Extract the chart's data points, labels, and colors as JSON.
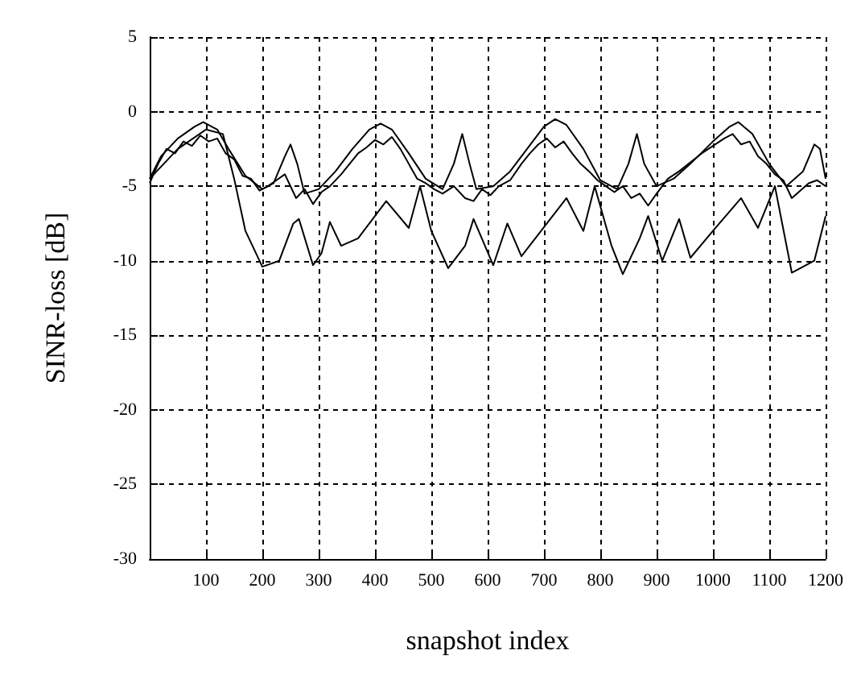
{
  "chart_data": {
    "type": "line",
    "xlabel": "snapshot index",
    "ylabel": "SINR-loss [dB]",
    "xlim": [
      0,
      1200
    ],
    "xticks": [
      100,
      200,
      300,
      400,
      500,
      600,
      700,
      800,
      900,
      1000,
      1100,
      1200
    ],
    "ylim": [
      -30,
      5
    ],
    "yticks": [
      -30,
      -25,
      -20,
      -15,
      -10,
      -5,
      0,
      5
    ],
    "grid": true,
    "marker": "none",
    "line_style": "solid",
    "series": [
      {
        "color": "#000000",
        "x": [
          0,
          20,
          50,
          80,
          95,
          120,
          140,
          170,
          200,
          220,
          240,
          250,
          262,
          275,
          300,
          330,
          360,
          390,
          410,
          430,
          460,
          490,
          520,
          540,
          555,
          568,
          580,
          610,
          640,
          670,
          700,
          720,
          740,
          770,
          800,
          830,
          850,
          865,
          878,
          900,
          930,
          960,
          1000,
          1030,
          1045,
          1070,
          1100,
          1130,
          1160,
          1180,
          1190,
          1200
        ],
        "values": [
          -4.5,
          -3,
          -1.8,
          -1,
          -0.7,
          -1.2,
          -2.5,
          -4.3,
          -5.2,
          -4.8,
          -3,
          -2.2,
          -3.5,
          -5.5,
          -5.2,
          -4,
          -2.5,
          -1.2,
          -0.8,
          -1.2,
          -2.8,
          -4.5,
          -5.2,
          -3.5,
          -1.5,
          -3.5,
          -5.2,
          -5,
          -4,
          -2.5,
          -1,
          -0.5,
          -0.9,
          -2.5,
          -4.6,
          -5.2,
          -3.5,
          -1.5,
          -3.5,
          -5,
          -4.5,
          -3.5,
          -2,
          -1,
          -0.7,
          -1.5,
          -3.5,
          -5,
          -4,
          -2.2,
          -2.5,
          -4.5
        ]
      },
      {
        "color": "#000000",
        "x": [
          0,
          15,
          30,
          45,
          60,
          75,
          90,
          105,
          120,
          135,
          150,
          165,
          180,
          195,
          210,
          225,
          240,
          260,
          275,
          290,
          305,
          320,
          340,
          355,
          370,
          385,
          400,
          415,
          430,
          445,
          460,
          475,
          490,
          505,
          520,
          540,
          560,
          575,
          590,
          605,
          620,
          640,
          660,
          675,
          690,
          705,
          720,
          735,
          750,
          765,
          780,
          795,
          810,
          825,
          840,
          855,
          870,
          885,
          900,
          920,
          940,
          960,
          980,
          1000,
          1020,
          1035,
          1050,
          1065,
          1080,
          1095,
          1110,
          1125,
          1140,
          1155,
          1170,
          1185,
          1200
        ],
        "values": [
          -4.8,
          -3.5,
          -2.5,
          -2.8,
          -2,
          -2.3,
          -1.6,
          -2,
          -1.8,
          -2.8,
          -3.2,
          -4.3,
          -4.5,
          -5.3,
          -5,
          -4.6,
          -4.2,
          -5.8,
          -5.2,
          -6.2,
          -5.4,
          -5,
          -4.2,
          -3.5,
          -2.8,
          -2.4,
          -1.9,
          -2.2,
          -1.7,
          -2.5,
          -3.5,
          -4.5,
          -4.8,
          -5.2,
          -5.5,
          -5,
          -5.8,
          -6,
          -5.2,
          -5.6,
          -5,
          -4.6,
          -3.5,
          -2.8,
          -2.2,
          -1.8,
          -2.4,
          -2,
          -2.8,
          -3.5,
          -4,
          -4.6,
          -5,
          -5.4,
          -5,
          -5.8,
          -5.5,
          -6.3,
          -5.5,
          -4.5,
          -4,
          -3.4,
          -2.8,
          -2.3,
          -1.8,
          -1.5,
          -2.2,
          -2,
          -3,
          -3.5,
          -4.2,
          -4.6,
          -5.8,
          -5.3,
          -4.8,
          -4.6,
          -5
        ]
      },
      {
        "color": "#000000",
        "x": [
          0,
          50,
          100,
          130,
          150,
          170,
          200,
          230,
          255,
          265,
          290,
          305,
          320,
          340,
          370,
          420,
          460,
          480,
          500,
          530,
          560,
          575,
          610,
          635,
          660,
          740,
          770,
          790,
          820,
          840,
          870,
          885,
          910,
          940,
          960,
          1000,
          1050,
          1080,
          1110,
          1140,
          1180,
          1200
        ],
        "values": [
          -4.5,
          -2.5,
          -1.2,
          -1.5,
          -4.5,
          -8,
          -10.4,
          -10,
          -7.5,
          -7.2,
          -10.3,
          -9.5,
          -7.4,
          -9,
          -8.5,
          -6,
          -7.8,
          -5,
          -8,
          -10.5,
          -9,
          -7.2,
          -10.3,
          -7.5,
          -9.7,
          -5.8,
          -8,
          -5,
          -9,
          -10.9,
          -8.5,
          -7,
          -10,
          -7.2,
          -9.8,
          -8,
          -5.8,
          -7.8,
          -5,
          -10.8,
          -10,
          -7
        ]
      }
    ]
  }
}
